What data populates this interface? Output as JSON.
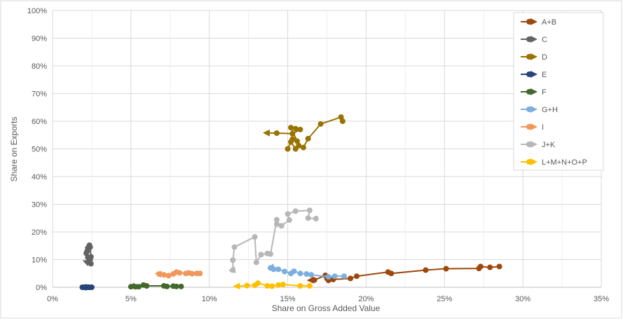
{
  "chart_data": {
    "type": "scatter",
    "title": "",
    "xlabel": "Share on Gross Added Value",
    "ylabel": "Share on Exports",
    "xlim": [
      0,
      0.35
    ],
    "ylim": [
      0,
      1.0
    ],
    "x_ticks": [
      0,
      0.05,
      0.1,
      0.15,
      0.2,
      0.25,
      0.3,
      0.35
    ],
    "x_tick_labels": [
      "0%",
      "5%",
      "10%",
      "15%",
      "20%",
      "25%",
      "30%",
      "35%"
    ],
    "y_ticks": [
      0,
      0.1,
      0.2,
      0.3,
      0.4,
      0.5,
      0.6,
      0.7,
      0.8,
      0.9,
      1.0
    ],
    "y_tick_labels": [
      "0%",
      "10%",
      "20%",
      "30%",
      "40%",
      "50%",
      "60%",
      "70%",
      "80%",
      "90%",
      "100%"
    ],
    "grid": true,
    "legend": "right",
    "series": [
      {
        "name": "A+B",
        "color": "#9e480e",
        "points": [
          [
            0.285,
            0.075
          ],
          [
            0.279,
            0.072
          ],
          [
            0.273,
            0.075
          ],
          [
            0.272,
            0.068
          ],
          [
            0.251,
            0.067
          ],
          [
            0.238,
            0.062
          ],
          [
            0.216,
            0.05
          ],
          [
            0.214,
            0.055
          ],
          [
            0.194,
            0.04
          ],
          [
            0.19,
            0.032
          ],
          [
            0.179,
            0.028
          ],
          [
            0.176,
            0.025
          ],
          [
            0.175,
            0.032
          ],
          [
            0.174,
            0.043
          ],
          [
            0.167,
            0.026
          ],
          [
            0.163,
            0.025
          ]
        ]
      },
      {
        "name": "C",
        "color": "#636363",
        "points": [
          [
            0.0245,
            0.11
          ],
          [
            0.024,
            0.145
          ],
          [
            0.0235,
            0.152
          ],
          [
            0.0225,
            0.142
          ],
          [
            0.022,
            0.13
          ],
          [
            0.0215,
            0.123
          ],
          [
            0.0225,
            0.108
          ],
          [
            0.024,
            0.1
          ],
          [
            0.0245,
            0.085
          ],
          [
            0.02,
            0.095
          ]
        ]
      },
      {
        "name": "D",
        "color": "#997300",
        "points": [
          [
            0.185,
            0.6
          ],
          [
            0.184,
            0.615
          ],
          [
            0.171,
            0.59
          ],
          [
            0.163,
            0.537
          ],
          [
            0.16,
            0.505
          ],
          [
            0.157,
            0.512
          ],
          [
            0.155,
            0.5
          ],
          [
            0.152,
            0.525
          ],
          [
            0.15,
            0.5
          ],
          [
            0.153,
            0.535
          ],
          [
            0.156,
            0.528
          ],
          [
            0.152,
            0.577
          ],
          [
            0.155,
            0.573
          ],
          [
            0.158,
            0.57
          ],
          [
            0.153,
            0.555
          ],
          [
            0.143,
            0.557
          ],
          [
            0.135,
            0.558
          ]
        ]
      },
      {
        "name": "E",
        "color": "#264478",
        "points": [
          [
            0.025,
            0.0
          ],
          [
            0.024,
            0.0
          ],
          [
            0.023,
            0.0
          ],
          [
            0.022,
            0.0
          ],
          [
            0.021,
            0.0
          ],
          [
            0.02,
            0.0
          ],
          [
            0.019,
            0.0
          ],
          [
            0.018,
            0.0
          ]
        ]
      },
      {
        "name": "F",
        "color": "#43682b",
        "points": [
          [
            0.082,
            0.003
          ],
          [
            0.079,
            0.003
          ],
          [
            0.077,
            0.004
          ],
          [
            0.073,
            0.003
          ],
          [
            0.071,
            0.005
          ],
          [
            0.06,
            0.005
          ],
          [
            0.058,
            0.008
          ],
          [
            0.055,
            0.002
          ],
          [
            0.053,
            0.002
          ],
          [
            0.05,
            0.002
          ],
          [
            0.049,
            0.001
          ]
        ]
      },
      {
        "name": "G+H",
        "color": "#7cafdd",
        "points": [
          [
            0.186,
            0.04
          ],
          [
            0.18,
            0.04
          ],
          [
            0.176,
            0.038
          ],
          [
            0.165,
            0.045
          ],
          [
            0.162,
            0.048
          ],
          [
            0.158,
            0.05
          ],
          [
            0.154,
            0.058
          ],
          [
            0.152,
            0.05
          ],
          [
            0.148,
            0.057
          ],
          [
            0.144,
            0.065
          ],
          [
            0.141,
            0.065
          ],
          [
            0.139,
            0.07
          ],
          [
            0.138,
            0.068
          ]
        ]
      },
      {
        "name": "I",
        "color": "#f1975a",
        "points": [
          [
            0.094,
            0.05
          ],
          [
            0.092,
            0.05
          ],
          [
            0.089,
            0.049
          ],
          [
            0.087,
            0.052
          ],
          [
            0.085,
            0.05
          ],
          [
            0.081,
            0.052
          ],
          [
            0.079,
            0.055
          ],
          [
            0.077,
            0.048
          ],
          [
            0.074,
            0.042
          ],
          [
            0.071,
            0.045
          ],
          [
            0.068,
            0.048
          ],
          [
            0.066,
            0.05
          ]
        ]
      },
      {
        "name": "J+K",
        "color": "#b7b7b7",
        "points": [
          [
            0.168,
            0.248
          ],
          [
            0.163,
            0.25
          ],
          [
            0.164,
            0.278
          ],
          [
            0.155,
            0.275
          ],
          [
            0.15,
            0.265
          ],
          [
            0.151,
            0.243
          ],
          [
            0.146,
            0.222
          ],
          [
            0.143,
            0.228
          ],
          [
            0.143,
            0.244
          ],
          [
            0.139,
            0.12
          ],
          [
            0.137,
            0.122
          ],
          [
            0.133,
            0.118
          ],
          [
            0.13,
            0.09
          ],
          [
            0.129,
            0.182
          ],
          [
            0.116,
            0.145
          ],
          [
            0.115,
            0.098
          ],
          [
            0.115,
            0.062
          ],
          [
            0.113,
            0.06
          ]
        ]
      },
      {
        "name": "L+M+N+O+P",
        "color": "#ffc000",
        "points": [
          [
            0.164,
            0.005
          ],
          [
            0.158,
            0.005
          ],
          [
            0.147,
            0.01
          ],
          [
            0.144,
            0.008
          ],
          [
            0.14,
            0.004
          ],
          [
            0.137,
            0.005
          ],
          [
            0.131,
            0.015
          ],
          [
            0.129,
            0.007
          ],
          [
            0.124,
            0.006
          ],
          [
            0.116,
            0.003
          ]
        ]
      }
    ]
  }
}
